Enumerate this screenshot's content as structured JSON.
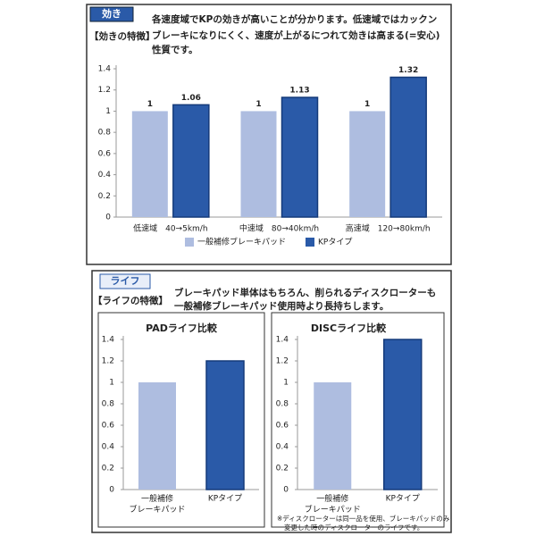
{
  "chart_data": [
    {
      "type": "bar",
      "tag": "効き",
      "feature_label": "【効きの特徴】",
      "description": [
        "各速度域でKPの効きが高いことが分かります。低速域ではカックン",
        "ブレーキになりにくく、速度が上がるにつれて効きは高まる(=安心)",
        "性質です。"
      ],
      "categories": [
        "低速域　40→5km/h",
        "中速域　80→40km/h",
        "高速域　120→80km/h"
      ],
      "series": [
        {
          "name": "一般補修ブレーキパッド",
          "color": "#aebde0",
          "values": [
            1,
            1,
            1
          ]
        },
        {
          "name": "KPタイプ",
          "color": "#2a5aa8",
          "values": [
            1.06,
            1.13,
            1.32
          ]
        }
      ],
      "ylim": [
        0,
        1.4
      ],
      "yticks": [
        0,
        0.2,
        0.4,
        0.6,
        0.8,
        1,
        1.2,
        1.4
      ],
      "legend": "bottom"
    },
    {
      "type": "bar",
      "tag": "ライフ",
      "feature_label": "【ライフの特徴】",
      "description": [
        "ブレーキパッド単体はもちろん、削られるディスクローターも",
        "一般補修ブレーキパッド使用時より長持ちします。"
      ],
      "title": "PADライフ比較",
      "categories": [
        "一般補修\nブレーキパッド",
        "KPタイプ"
      ],
      "values": [
        1,
        1.2
      ],
      "colors": [
        "#aebde0",
        "#2a5aa8"
      ],
      "ylim": [
        0,
        1.4
      ],
      "yticks": [
        0,
        0.2,
        0.4,
        0.6,
        0.8,
        1,
        1.2,
        1.4
      ]
    },
    {
      "type": "bar",
      "title": "DISCライフ比較",
      "categories": [
        "一般補修\nブレーキパッド",
        "KPタイプ"
      ],
      "values": [
        1,
        1.4
      ],
      "colors": [
        "#aebde0",
        "#2a5aa8"
      ],
      "ylim": [
        0,
        1.4
      ],
      "yticks": [
        0,
        0.2,
        0.4,
        0.6,
        0.8,
        1,
        1.2,
        1.4
      ],
      "note": [
        "※ディスクローターは同一品を使用、ブレーキパッドのみ",
        "変更した時のディスクローターのライフです。"
      ]
    }
  ]
}
